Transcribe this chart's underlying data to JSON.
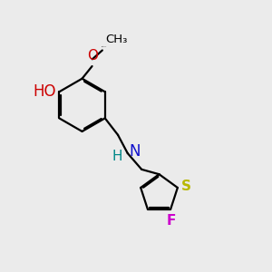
{
  "bg": "#ebebeb",
  "lw": 1.6,
  "aoff": 0.05,
  "colors": {
    "HO": "#cc0000",
    "O": "#cc0000",
    "N": "#1010cc",
    "S": "#b8b800",
    "F": "#cc00cc",
    "C": "#000000",
    "H": "#008888"
  },
  "figsize": [
    3.0,
    3.0
  ],
  "dpi": 100
}
